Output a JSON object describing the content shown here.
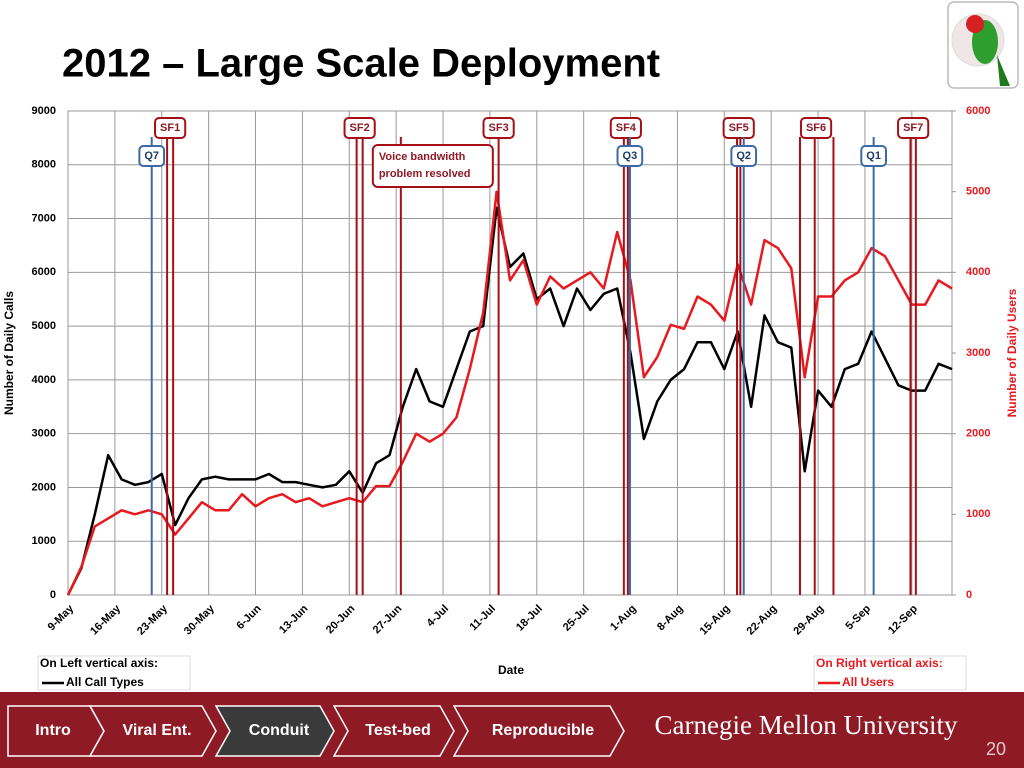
{
  "chart_data": {
    "type": "line",
    "title": "2012 – Large Scale Deployment",
    "x": [
      0,
      2,
      4,
      6,
      8,
      10,
      12,
      14,
      16,
      18,
      20,
      22,
      24,
      26,
      28,
      30,
      32,
      34,
      36,
      38,
      40,
      42,
      44,
      46,
      48,
      50,
      52,
      54,
      56,
      58,
      60,
      62,
      64,
      66,
      68,
      70,
      72,
      74,
      76,
      78,
      80,
      82,
      84,
      86,
      88,
      90,
      92,
      94,
      96,
      98,
      100,
      102,
      104,
      106,
      108,
      110,
      112,
      114,
      116,
      118,
      120,
      122,
      124,
      126,
      128,
      130,
      132
    ],
    "series": [
      {
        "name": "All Call Types",
        "color": "#000000",
        "values": [
          0,
          500,
          1500,
          2600,
          2150,
          2050,
          2100,
          2250,
          1300,
          1800,
          2150,
          2200,
          2150,
          2150,
          2150,
          2250,
          2100,
          2100,
          2050,
          2000,
          2050,
          2300,
          1900,
          2450,
          2600,
          3500,
          4200,
          3600,
          3500,
          4200,
          4900,
          5000,
          7200,
          6100,
          6350,
          5500,
          5700,
          5000,
          5700,
          5300,
          5600,
          5700,
          4500,
          2900,
          3600,
          4000,
          4200,
          4700,
          4700,
          4200,
          4900,
          3500,
          5200,
          4700,
          4600,
          2300,
          3800,
          3500,
          4200,
          4300,
          4900,
          4400,
          3900,
          3800,
          3800,
          4300,
          4200
        ]
      },
      {
        "name": "All Users",
        "color": "#e8191f",
        "axis": "y2",
        "values": [
          0,
          350,
          850,
          950,
          1050,
          1000,
          1050,
          1000,
          750,
          950,
          1150,
          1050,
          1050,
          1250,
          1100,
          1200,
          1250,
          1150,
          1200,
          1100,
          1150,
          1200,
          1150,
          1350,
          1350,
          1650,
          2000,
          1900,
          2000,
          2200,
          2800,
          3500,
          5000,
          3900,
          4150,
          3600,
          3950,
          3800,
          3900,
          4000,
          3800,
          4500,
          3900,
          2700,
          2950,
          3350,
          3300,
          3700,
          3600,
          3400,
          4100,
          3600,
          4400,
          4300,
          4050,
          2700,
          3700,
          3700,
          3900,
          4000,
          4300,
          4200,
          3900,
          3600,
          3600,
          3900,
          3800
        ]
      }
    ],
    "xlim": [
      0,
      132
    ],
    "xticks": [
      {
        "value": 0,
        "label": "9-May"
      },
      {
        "value": 7,
        "label": "16-May"
      },
      {
        "value": 14,
        "label": "23-May"
      },
      {
        "value": 21,
        "label": "30-May"
      },
      {
        "value": 28,
        "label": "6-Jun"
      },
      {
        "value": 35,
        "label": "13-Jun"
      },
      {
        "value": 42,
        "label": "20-Jun"
      },
      {
        "value": 49,
        "label": "27-Jun"
      },
      {
        "value": 56,
        "label": "4-Jul"
      },
      {
        "value": 63,
        "label": "11-Jul"
      },
      {
        "value": 70,
        "label": "18-Jul"
      },
      {
        "value": 77,
        "label": "25-Jul"
      },
      {
        "value": 84,
        "label": "1-Aug"
      },
      {
        "value": 91,
        "label": "8-Aug"
      },
      {
        "value": 98,
        "label": "15-Aug"
      },
      {
        "value": 105,
        "label": "22-Aug"
      },
      {
        "value": 112,
        "label": "29-Aug"
      },
      {
        "value": 119,
        "label": "5-Sep"
      },
      {
        "value": 126,
        "label": "12-Sep"
      }
    ],
    "ylim": [
      0,
      9000
    ],
    "yticks": [
      0,
      1000,
      2000,
      3000,
      4000,
      5000,
      6000,
      7000,
      8000,
      9000
    ],
    "y2lim": [
      0,
      6000
    ],
    "y2ticks": [
      0,
      1000,
      2000,
      3000,
      4000,
      5000,
      6000
    ],
    "xlabel": "Date",
    "ylabel": "Number of Daily Calls",
    "y2label": "Number of Daily Users",
    "grid": true,
    "axis_notes": [
      "On Left vertical axis:",
      "On Right vertical axis:"
    ],
    "annotations": [
      {
        "label": "Q7",
        "color": "#3d6aa6",
        "x": [
          12.5
        ]
      },
      {
        "label": "SF1",
        "color": "#a50f15",
        "x": [
          14.8,
          15.7
        ]
      },
      {
        "label": "SF2",
        "color": "#a50f15",
        "x": [
          43.1,
          44.0
        ]
      },
      {
        "label": [
          "Voice bandwidth",
          "problem resolved"
        ],
        "color": "#a50f15",
        "x": [
          49.7
        ]
      },
      {
        "label": "SF3",
        "color": "#a50f15",
        "x": [
          64.3
        ]
      },
      {
        "label": "SF4",
        "color": "#a50f15",
        "x": [
          83.0,
          83.6
        ]
      },
      {
        "label": "Q3",
        "color": "#3d6aa6",
        "x": [
          83.9
        ]
      },
      {
        "label": "SF5",
        "color": "#a50f15",
        "x": [
          99.9,
          100.4
        ]
      },
      {
        "label": "Q2",
        "color": "#3d6aa6",
        "x": [
          100.9
        ]
      },
      {
        "label": "SF6",
        "color": "#a50f15",
        "x": [
          109.3,
          111.5,
          114.3
        ]
      },
      {
        "label": "Q1",
        "color": "#3d6aa6",
        "x": [
          120.3
        ]
      },
      {
        "label": "SF7",
        "color": "#a50f15",
        "x": [
          125.8,
          126.6
        ]
      }
    ]
  },
  "nav": {
    "items": [
      "Intro",
      "Viral Ent.",
      "Conduit",
      "Test-bed",
      "Reproducible"
    ],
    "active": 2
  },
  "footer": {
    "brand": "Carnegie Mellon University",
    "page": 20
  }
}
